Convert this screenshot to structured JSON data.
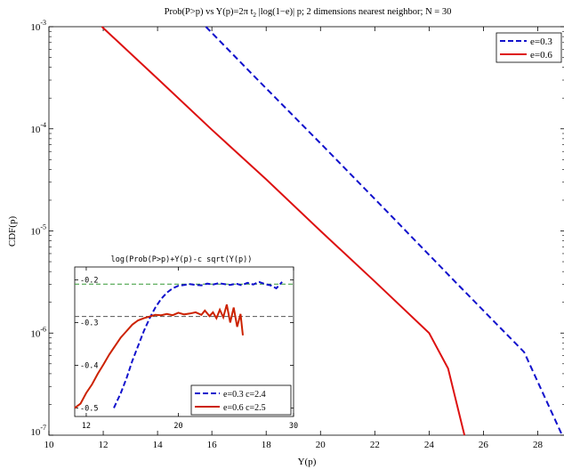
{
  "chart_data": [
    {
      "type": "line",
      "title_main": "Prob(P>p) vs Y(p)=2π t",
      "title_sub": "2",
      "title_rest": " |log(1−e)| p;  2 dimensions nearest neighbor; N = 30",
      "xlabel": "Y(p)",
      "ylabel": "CDF(p)",
      "xlim": [
        10,
        29
      ],
      "ylim": [
        1e-07,
        0.001
      ],
      "yscale": "log",
      "grid": false,
      "legend_position": "top-right",
      "x_ticks": [
        10,
        12,
        14,
        16,
        18,
        20,
        22,
        24,
        26,
        28
      ],
      "x_tick_labels": [
        "10",
        "12",
        "14",
        "16",
        "18",
        "20",
        "22",
        "24",
        "26",
        "28"
      ],
      "y_ticks": [
        1e-07,
        1e-06,
        1e-05,
        0.0001,
        0.001
      ],
      "y_tick_labels": [
        {
          "base": "10",
          "exp": "-7"
        },
        {
          "base": "10",
          "exp": "-6"
        },
        {
          "base": "10",
          "exp": "-5"
        },
        {
          "base": "10",
          "exp": "-4"
        },
        {
          "base": "10",
          "exp": "-3"
        }
      ],
      "series": [
        {
          "name": "e=0.3",
          "color": "#1111cc",
          "dash": "dashed",
          "x": [
            15.78,
            17.5,
            20,
            22.5,
            25,
            27.5,
            28.9
          ],
          "y": [
            0.001,
            0.00034,
            7.2e-05,
            1.5e-05,
            3.1e-06,
            6.5e-07,
            1e-07
          ]
        },
        {
          "name": "e=0.6",
          "color": "#dd1111",
          "dash": "solid",
          "x": [
            11.95,
            14,
            16,
            18,
            20,
            22,
            24,
            24.7,
            25.3
          ],
          "y": [
            0.001,
            0.00031,
            9.8e-05,
            3.2e-05,
            1e-05,
            3.2e-06,
            1e-06,
            4.5e-07,
            1e-07
          ]
        }
      ]
    },
    {
      "type": "line",
      "title": "log(Prob(P>p)+Y(p)-c sqrt(Y(p))",
      "xlim": [
        11,
        30
      ],
      "ylim": [
        -0.52,
        -0.17
      ],
      "grid": false,
      "legend_position": "bottom-right",
      "x_ticks": [
        12,
        20,
        30
      ],
      "x_tick_labels": [
        "12",
        "20",
        "30"
      ],
      "y_ticks": [
        -0.5,
        -0.4,
        -0.3,
        -0.2
      ],
      "y_tick_labels": [
        "-0.5",
        "-0.4",
        "-0.3",
        "-0.2"
      ],
      "reference_lines": [
        {
          "y": -0.21,
          "color": "#339933"
        },
        {
          "y": -0.286,
          "color": "#555555"
        }
      ],
      "series": [
        {
          "name": "e=0.3 c=2.4",
          "color": "#1111cc",
          "dash": "dashed",
          "x": [
            14.4,
            15,
            15.5,
            16,
            16.5,
            17,
            17.5,
            18,
            18.5,
            19,
            19.5,
            20,
            20.5,
            21,
            21.5,
            22,
            22.5,
            23,
            23.5,
            24,
            24.5,
            25,
            25.5,
            26,
            26.5,
            27,
            27.5,
            28,
            28.5,
            29
          ],
          "y": [
            -0.5,
            -0.465,
            -0.43,
            -0.39,
            -0.355,
            -0.32,
            -0.29,
            -0.265,
            -0.245,
            -0.23,
            -0.22,
            -0.214,
            -0.212,
            -0.21,
            -0.212,
            -0.213,
            -0.209,
            -0.211,
            -0.208,
            -0.21,
            -0.212,
            -0.209,
            -0.213,
            -0.207,
            -0.211,
            -0.205,
            -0.21,
            -0.213,
            -0.22,
            -0.205
          ]
        },
        {
          "name": "e=0.6 c=2.5",
          "color": "#cc2200",
          "dash": "solid",
          "x": [
            11,
            11.5,
            12,
            12.5,
            13,
            13.5,
            14,
            14.5,
            15,
            15.5,
            16,
            16.5,
            17,
            17.5,
            18,
            18.5,
            19,
            19.5,
            20,
            20.5,
            21,
            21.5,
            22,
            22.3,
            22.7,
            23,
            23.3,
            23.6,
            23.9,
            24.2,
            24.5,
            24.8,
            25.1,
            25.4,
            25.6
          ],
          "y": [
            -0.5,
            -0.49,
            -0.465,
            -0.445,
            -0.42,
            -0.398,
            -0.375,
            -0.355,
            -0.335,
            -0.32,
            -0.305,
            -0.295,
            -0.29,
            -0.286,
            -0.282,
            -0.283,
            -0.28,
            -0.283,
            -0.277,
            -0.281,
            -0.279,
            -0.276,
            -0.282,
            -0.272,
            -0.285,
            -0.276,
            -0.29,
            -0.27,
            -0.288,
            -0.258,
            -0.3,
            -0.265,
            -0.31,
            -0.28,
            -0.33
          ]
        }
      ]
    }
  ]
}
